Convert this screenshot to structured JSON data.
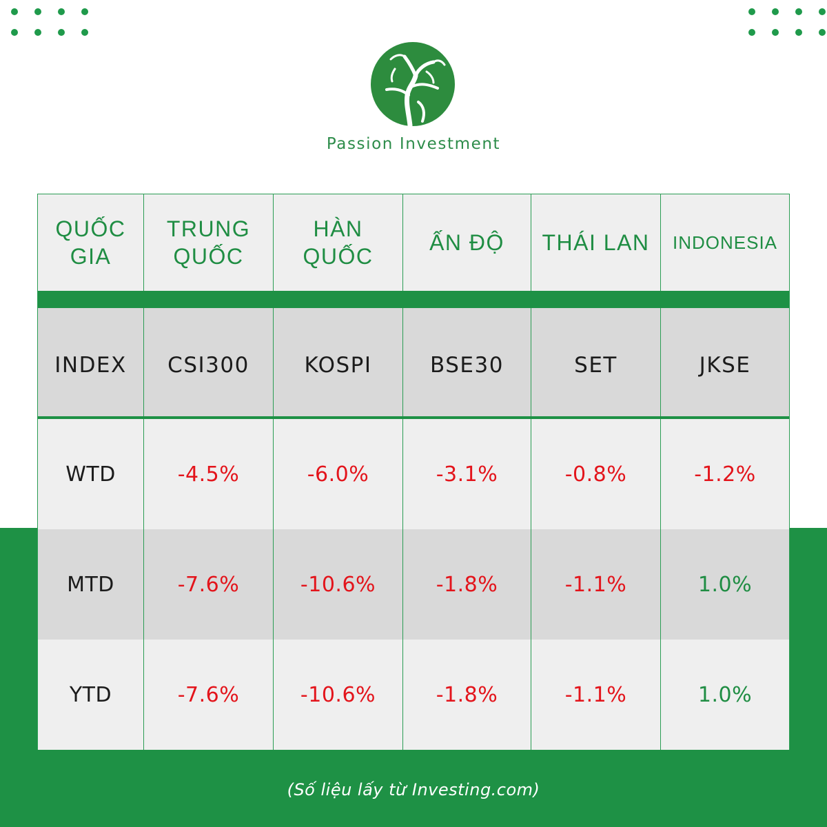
{
  "brand": {
    "name": "Passion Investment",
    "colors": {
      "green": "#1e9145",
      "negative": "#e3141b",
      "text": "#1b1b1b",
      "gray": "#d9d9d9"
    }
  },
  "table": {
    "header": [
      "QUỐC GIA",
      "TRUNG QUỐC",
      "HÀN QUỐC",
      "ẤN ĐỘ",
      "THÁI LAN",
      "INDONESIA"
    ],
    "index_row": [
      "INDEX",
      "CSI300",
      "KOSPI",
      "BSE30",
      "SET",
      "JKSE"
    ],
    "rows": [
      {
        "label": "WTD",
        "values": [
          "-4.5%",
          "-6.0%",
          "-3.1%",
          "-0.8%",
          "-1.2%"
        ]
      },
      {
        "label": "MTD",
        "values": [
          "-7.6%",
          "-10.6%",
          "-1.8%",
          "-1.1%",
          "1.0%"
        ]
      },
      {
        "label": "YTD",
        "values": [
          "-7.6%",
          "-10.6%",
          "-1.8%",
          "-1.1%",
          "1.0%"
        ]
      }
    ]
  },
  "source_note": "(Số liệu lấy từ Investing.com)"
}
